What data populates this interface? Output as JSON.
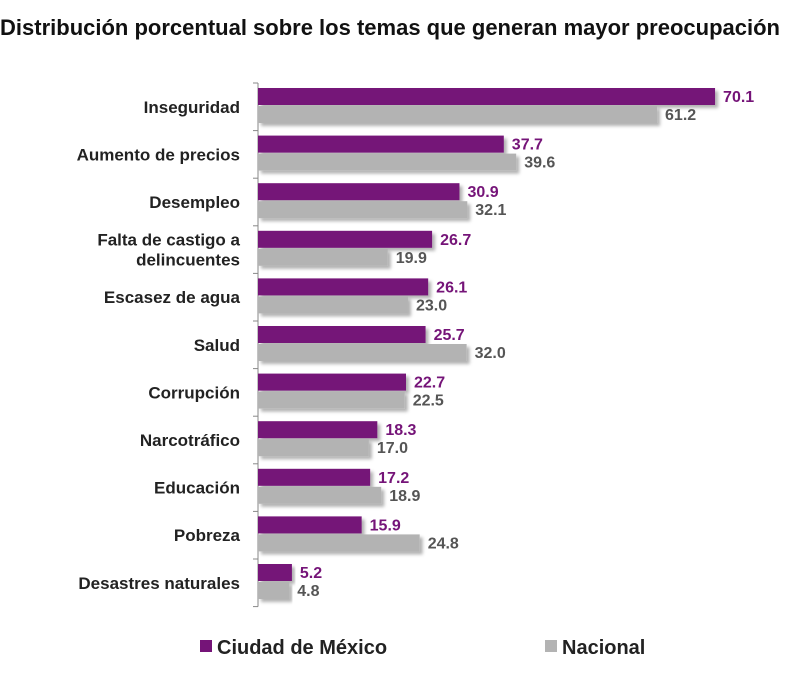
{
  "chart_data": {
    "type": "bar",
    "orientation": "horizontal",
    "title": "Distribución porcentual sobre los temas que generan mayor preocupación",
    "categories": [
      "Inseguridad",
      "Aumento de precios",
      "Desempleo",
      "Falta de castigo a delincuentes",
      "Escasez de agua",
      "Salud",
      "Corrupción",
      "Narcotráfico",
      "Educación",
      "Pobreza",
      "Desastres naturales"
    ],
    "series": [
      {
        "name": "Ciudad de México",
        "color": "#751478",
        "values": [
          70.1,
          37.7,
          30.9,
          26.7,
          26.1,
          25.7,
          22.7,
          18.3,
          17.2,
          15.9,
          5.2
        ]
      },
      {
        "name": "Nacional",
        "color": "#b3b3b3",
        "values": [
          61.2,
          39.6,
          32.1,
          19.9,
          23.0,
          32.0,
          22.5,
          17.0,
          18.9,
          24.8,
          4.8
        ]
      }
    ],
    "data_labels": true,
    "grid": false,
    "legend": "bottom"
  }
}
